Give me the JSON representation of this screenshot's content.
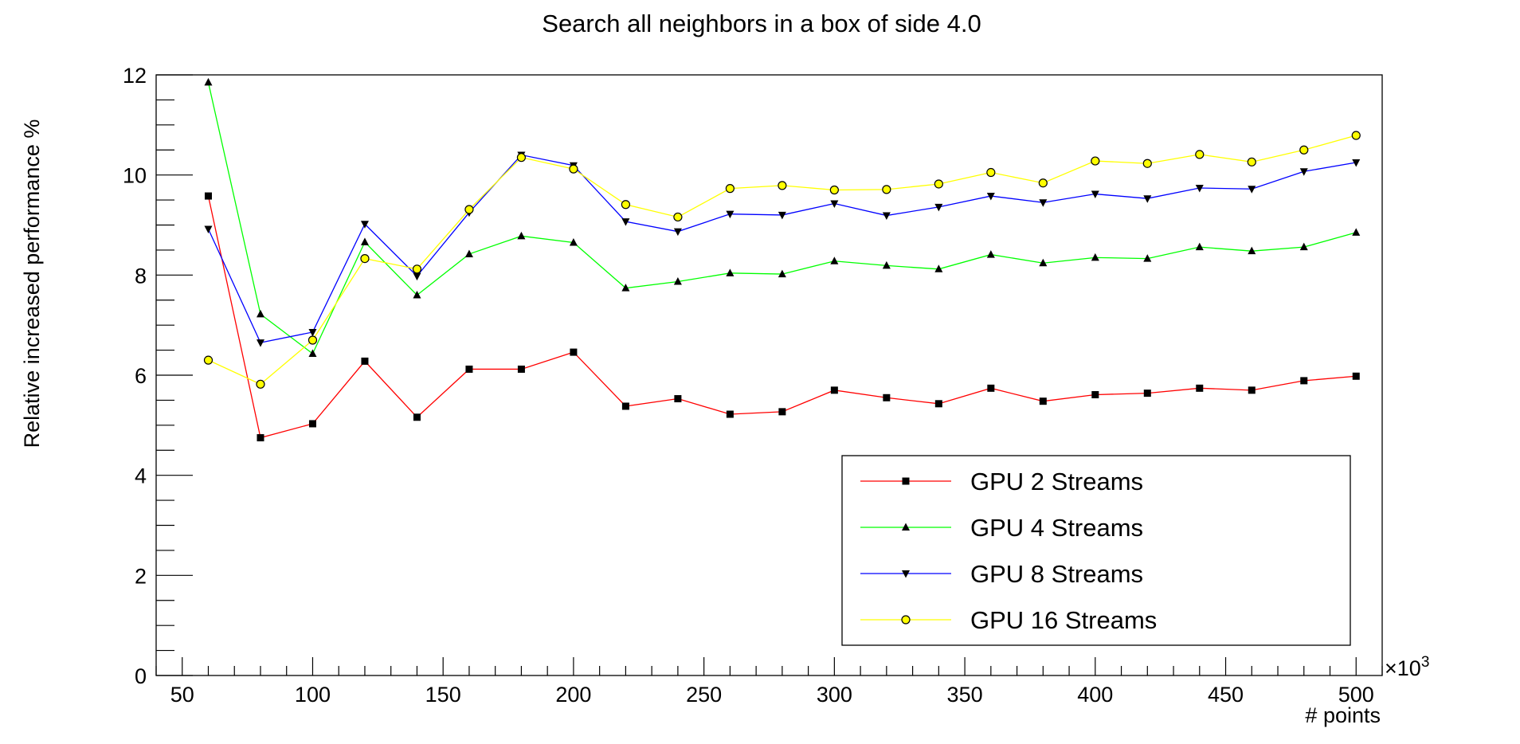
{
  "chart_data": {
    "type": "line",
    "title": "Search all neighbors in a box of side 4.0",
    "xlabel": "# points",
    "ylabel": "Relative increased performance %",
    "x_multiplier_label": "×10",
    "x_multiplier_exponent": "3",
    "xlim": [
      40,
      510
    ],
    "ylim": [
      0,
      12
    ],
    "x_ticks": [
      50,
      100,
      150,
      200,
      250,
      300,
      350,
      400,
      450,
      500
    ],
    "x_tick_labels": [
      "50",
      "100",
      "150",
      "200",
      "250",
      "300",
      "350",
      "400",
      "450",
      "500"
    ],
    "y_ticks": [
      0,
      2,
      4,
      6,
      8,
      10,
      12
    ],
    "y_tick_labels": [
      "0",
      "2",
      "4",
      "6",
      "8",
      "10",
      "12"
    ],
    "x": [
      60,
      80,
      100,
      120,
      140,
      160,
      180,
      200,
      220,
      240,
      260,
      280,
      300,
      320,
      340,
      360,
      380,
      400,
      420,
      440,
      460,
      480,
      500
    ],
    "series": [
      {
        "name": "GPU 2 Streams",
        "color": "#ff0000",
        "marker": "square",
        "values": [
          9.58,
          4.75,
          5.03,
          6.28,
          5.16,
          6.12,
          6.12,
          6.46,
          5.38,
          5.53,
          5.22,
          5.27,
          5.7,
          5.55,
          5.43,
          5.74,
          5.48,
          5.61,
          5.64,
          5.74,
          5.7,
          5.89,
          5.98
        ]
      },
      {
        "name": "GPU 4 Streams",
        "color": "#00ff00",
        "marker": "triangle-up",
        "values": [
          11.85,
          7.22,
          6.43,
          8.66,
          7.6,
          8.42,
          8.78,
          8.65,
          7.74,
          7.87,
          8.04,
          8.02,
          8.28,
          8.19,
          8.12,
          8.41,
          8.24,
          8.35,
          8.33,
          8.56,
          8.48,
          8.56,
          8.85
        ]
      },
      {
        "name": "GPU 8 Streams",
        "color": "#0000ff",
        "marker": "triangle-down",
        "values": [
          8.92,
          6.65,
          6.86,
          9.02,
          7.98,
          9.25,
          10.4,
          10.19,
          9.07,
          8.87,
          9.22,
          9.2,
          9.43,
          9.19,
          9.36,
          9.58,
          9.45,
          9.62,
          9.53,
          9.74,
          9.72,
          10.07,
          10.25
        ]
      },
      {
        "name": "GPU 16 Streams",
        "color": "#ffff00",
        "marker": "circle",
        "values": [
          6.3,
          5.82,
          6.7,
          8.33,
          8.12,
          9.31,
          10.35,
          10.12,
          9.41,
          9.16,
          9.73,
          9.79,
          9.7,
          9.71,
          9.82,
          10.05,
          9.84,
          10.28,
          10.23,
          10.41,
          10.26,
          10.5,
          10.79
        ]
      }
    ],
    "legend_position": "bottom-right"
  }
}
